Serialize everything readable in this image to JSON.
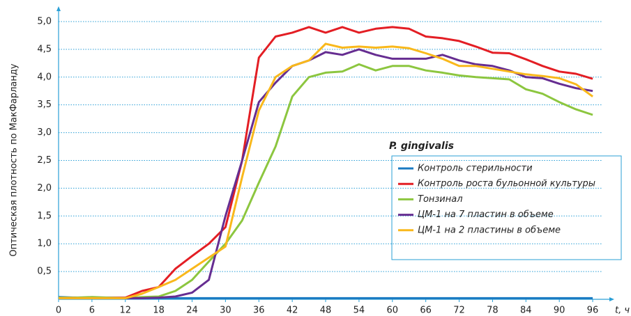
{
  "chart_data": {
    "type": "line",
    "y_label": "Оптическая плотность по МакФарланду",
    "x_label": "t, ч",
    "legend_title": "P. gingivalis",
    "x": [
      0,
      3,
      6,
      9,
      12,
      15,
      18,
      21,
      24,
      27,
      30,
      33,
      36,
      39,
      42,
      45,
      48,
      51,
      54,
      57,
      60,
      63,
      66,
      69,
      72,
      75,
      78,
      81,
      84,
      87,
      90,
      93,
      96
    ],
    "xlim": [
      0,
      99
    ],
    "xticks": [
      0,
      6,
      12,
      18,
      24,
      30,
      36,
      42,
      48,
      54,
      60,
      66,
      72,
      78,
      84,
      90,
      96
    ],
    "ylim": [
      0,
      5.2
    ],
    "yticks": [
      {
        "value": 0.5,
        "label": "0,5"
      },
      {
        "value": 1.0,
        "label": "1,0"
      },
      {
        "value": 1.5,
        "label": "1,5"
      },
      {
        "value": 2.0,
        "label": "2,0"
      },
      {
        "value": 2.5,
        "label": "2,5"
      },
      {
        "value": 3.0,
        "label": "3,0"
      },
      {
        "value": 3.5,
        "label": "3,5"
      },
      {
        "value": 4.0,
        "label": "4,0"
      },
      {
        "value": 4.5,
        "label": "4,5"
      },
      {
        "value": 5.0,
        "label": "5,0"
      }
    ],
    "grid": true,
    "legend_position": "right",
    "series": [
      {
        "name": "Контроль стерильности",
        "color": "#1a7ac2",
        "values": [
          0.04,
          0.03,
          0.03,
          0.02,
          0.02,
          0.02,
          0.02,
          0.02,
          0.02,
          0.02,
          0.02,
          0.02,
          0.02,
          0.02,
          0.02,
          0.02,
          0.02,
          0.02,
          0.02,
          0.02,
          0.02,
          0.02,
          0.02,
          0.02,
          0.02,
          0.02,
          0.02,
          0.02,
          0.02,
          0.02,
          0.02,
          0.02,
          0.02
        ]
      },
      {
        "name": "Контроль роста бульонной культуры",
        "color": "#e31e24",
        "values": [
          0.03,
          0.03,
          0.03,
          0.03,
          0.03,
          0.15,
          0.22,
          0.55,
          0.78,
          1.0,
          1.3,
          2.5,
          4.35,
          4.73,
          4.8,
          4.9,
          4.8,
          4.9,
          4.8,
          4.87,
          4.9,
          4.87,
          4.73,
          4.7,
          4.65,
          4.55,
          4.44,
          4.43,
          4.32,
          4.2,
          4.1,
          4.06,
          3.97
        ]
      },
      {
        "name": "Тонзинал",
        "color": "#8cc63f",
        "values": [
          0.03,
          0.03,
          0.04,
          0.03,
          0.02,
          0.04,
          0.05,
          0.15,
          0.35,
          0.68,
          1.0,
          1.42,
          2.1,
          2.75,
          3.65,
          4.0,
          4.08,
          4.1,
          4.23,
          4.12,
          4.2,
          4.2,
          4.12,
          4.08,
          4.03,
          4.0,
          3.98,
          3.96,
          3.78,
          3.7,
          3.55,
          3.42,
          3.32
        ]
      },
      {
        "name": "ЦМ-1 на 7 пластин в объеме",
        "color": "#662d91",
        "values": [
          0.02,
          0.02,
          0.02,
          0.02,
          0.02,
          0.02,
          0.03,
          0.05,
          0.12,
          0.35,
          1.5,
          2.5,
          3.55,
          3.9,
          4.2,
          4.3,
          4.45,
          4.4,
          4.5,
          4.4,
          4.33,
          4.33,
          4.33,
          4.4,
          4.3,
          4.23,
          4.2,
          4.12,
          4.0,
          3.98,
          3.88,
          3.8,
          3.75
        ]
      },
      {
        "name": "ЦМ-1 на 2 пластины в объеме",
        "color": "#f9b81b",
        "values": [
          0.02,
          0.02,
          0.02,
          0.02,
          0.02,
          0.1,
          0.22,
          0.35,
          0.55,
          0.75,
          0.95,
          2.2,
          3.4,
          4.0,
          4.2,
          4.3,
          4.6,
          4.53,
          4.55,
          4.53,
          4.55,
          4.52,
          4.43,
          4.33,
          4.2,
          4.2,
          4.15,
          4.1,
          4.05,
          4.02,
          3.98,
          3.87,
          3.65
        ]
      }
    ]
  }
}
